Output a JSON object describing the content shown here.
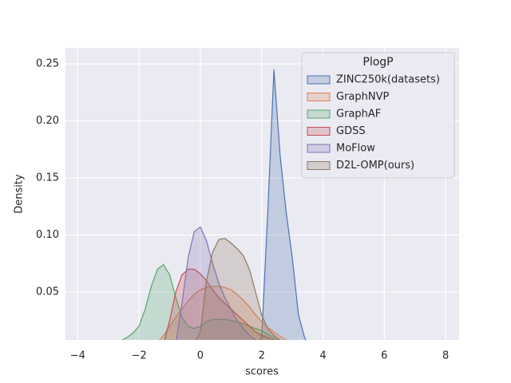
{
  "chart_data": {
    "type": "kde",
    "x_label": "scores",
    "y_label": "Density",
    "legend_title": "PlogP",
    "legend_position": "upper right",
    "grid": true,
    "xlim": [
      -4.4,
      8.44
    ],
    "ylim": [
      0.008,
      0.264
    ],
    "xticks": [
      {
        "value": -4,
        "label": "−4"
      },
      {
        "value": -2,
        "label": "−2"
      },
      0,
      2,
      4,
      6,
      8
    ],
    "yticks": [
      0.05,
      {
        "value": 0.1,
        "label": "0.10"
      },
      0.15,
      {
        "value": 0.2,
        "label": "0.20"
      },
      0.25
    ],
    "x": [
      -3,
      -2.8,
      -2.6,
      -2.4,
      -2.2,
      -2,
      -1.8,
      -1.6,
      -1.4,
      -1.2,
      -1,
      -0.8,
      -0.6,
      -0.4,
      -0.2,
      0,
      0.2,
      0.4,
      0.6,
      0.8,
      1,
      1.2,
      1.4,
      1.6,
      1.8,
      2,
      2.2,
      2.4,
      2.6,
      2.8,
      3,
      3.2,
      3.4,
      3.6
    ],
    "series": [
      {
        "name": "ZINC250k(datasets)",
        "color": "#4c72b0",
        "values": [
          0,
          0,
          0,
          0,
          0,
          0,
          0,
          0,
          0,
          0,
          0,
          0,
          0,
          0,
          0,
          0,
          0,
          0,
          0,
          0,
          0,
          0,
          0,
          0,
          0,
          0.01,
          0.12,
          0.245,
          0.17,
          0.12,
          0.08,
          0.03,
          0.01,
          0
        ]
      },
      {
        "name": "GraphNVP",
        "color": "#dd8452",
        "values": [
          0,
          0,
          0,
          0,
          0,
          0,
          0,
          0,
          0.006,
          0.012,
          0.02,
          0.028,
          0.035,
          0.042,
          0.048,
          0.052,
          0.054,
          0.055,
          0.055,
          0.054,
          0.052,
          0.048,
          0.043,
          0.037,
          0.03,
          0.024,
          0.019,
          0.015,
          0.011,
          0.008,
          0.005,
          0.003,
          0,
          0
        ]
      },
      {
        "name": "GraphAF",
        "color": "#55a868",
        "values": [
          0.003,
          0.005,
          0.007,
          0.01,
          0.014,
          0.02,
          0.035,
          0.055,
          0.07,
          0.074,
          0.065,
          0.045,
          0.028,
          0.02,
          0.018,
          0.02,
          0.024,
          0.026,
          0.026,
          0.026,
          0.025,
          0.024,
          0.022,
          0.02,
          0.018,
          0.016,
          0.013,
          0.01,
          0.007,
          0.005,
          0.003,
          0,
          0,
          0
        ]
      },
      {
        "name": "GDSS",
        "color": "#c44e52",
        "values": [
          0,
          0,
          0,
          0,
          0,
          0,
          0,
          0,
          0,
          0.005,
          0.025,
          0.05,
          0.065,
          0.07,
          0.07,
          0.066,
          0.06,
          0.052,
          0.045,
          0.04,
          0.035,
          0.03,
          0.025,
          0.02,
          0.015,
          0.012,
          0.01,
          0.008,
          0.006,
          0.004,
          0,
          0,
          0,
          0
        ]
      },
      {
        "name": "MoFlow",
        "color": "#8172b3",
        "values": [
          0,
          0,
          0,
          0,
          0,
          0,
          0,
          0,
          0,
          0,
          0,
          0.005,
          0.04,
          0.08,
          0.103,
          0.107,
          0.095,
          0.075,
          0.058,
          0.045,
          0.035,
          0.025,
          0.018,
          0.012,
          0.008,
          0.006,
          0.004,
          0.003,
          0.002,
          0,
          0,
          0,
          0,
          0
        ]
      },
      {
        "name": "D2L-OMP(ours)",
        "color": "#937860",
        "values": [
          0,
          0,
          0,
          0,
          0,
          0,
          0,
          0,
          0,
          0,
          0,
          0,
          0,
          0,
          0.005,
          0.015,
          0.06,
          0.085,
          0.096,
          0.097,
          0.093,
          0.088,
          0.082,
          0.07,
          0.05,
          0.03,
          0.018,
          0.012,
          0.008,
          0.005,
          0,
          0,
          0,
          0
        ]
      }
    ]
  }
}
